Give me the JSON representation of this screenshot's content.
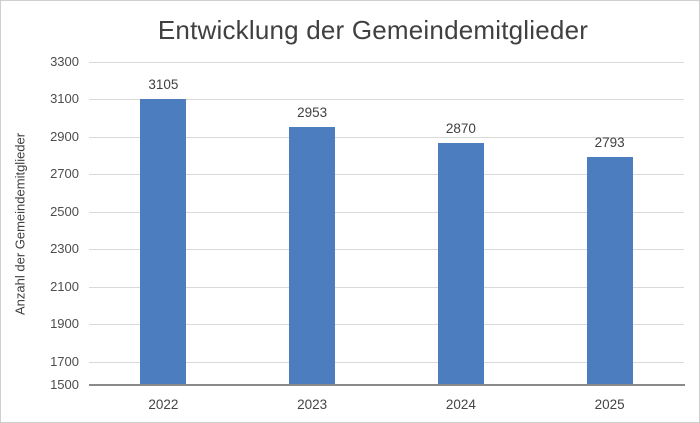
{
  "chart_title": "Entwicklung der Gemeindemitglieder",
  "chart_data": {
    "type": "bar",
    "title": "Entwicklung der Gemeindemitglieder",
    "categories": [
      "2022",
      "2023",
      "2024",
      "2025"
    ],
    "values": [
      3105,
      2953,
      2870,
      2793
    ],
    "data_labels": [
      "3105",
      "2953",
      "2870",
      "2793"
    ],
    "xlabel": "",
    "ylabel": "Anzahl der Gemeindemitglieder",
    "ylim": [
      1500,
      3300
    ],
    "yticks": [
      3300,
      3100,
      2900,
      2700,
      2500,
      2300,
      2100,
      1900,
      1700,
      1500
    ],
    "grid": true,
    "legend": false,
    "colors": {
      "bar_fill": "#4C7DBE",
      "gridline": "#d9d9d9",
      "axis_line": "#8a8a8a",
      "title_text": "#404040",
      "tick_text": "#4d4d4d"
    }
  }
}
